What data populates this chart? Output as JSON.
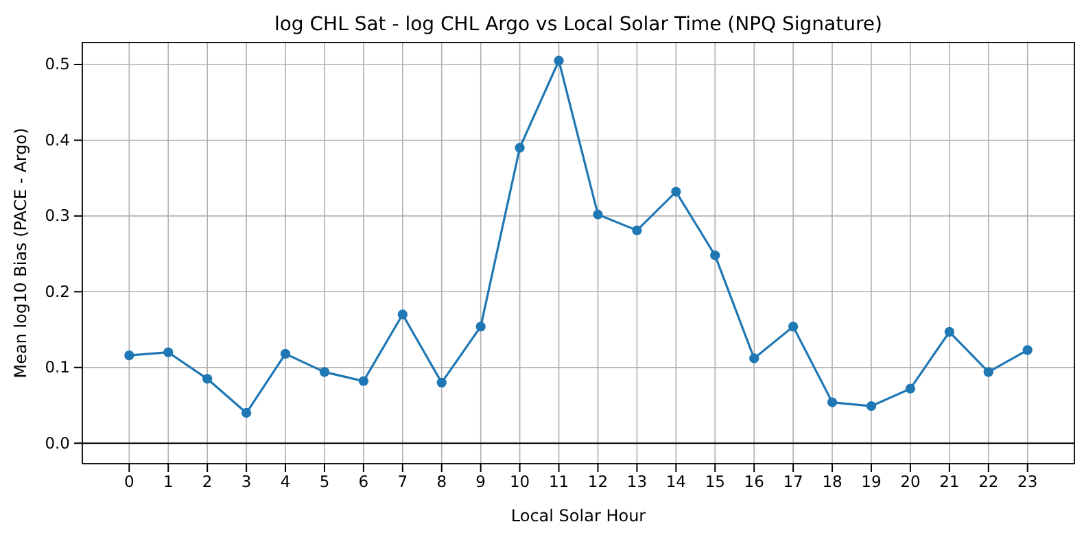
{
  "chart_data": {
    "type": "line",
    "title": "log CHL Sat - log CHL Argo vs Local Solar Time (NPQ Signature)",
    "xlabel": "Local Solar Hour",
    "ylabel": "Mean log10 Bias (PACE - Argo)",
    "x": [
      0,
      1,
      2,
      3,
      4,
      5,
      6,
      7,
      8,
      9,
      10,
      11,
      12,
      13,
      14,
      15,
      16,
      17,
      18,
      19,
      20,
      21,
      22,
      23
    ],
    "series": [
      {
        "color": "#1f77b4",
        "values": [
          0.116,
          0.12,
          0.085,
          0.04,
          0.118,
          0.094,
          0.082,
          0.17,
          0.08,
          0.154,
          0.39,
          0.505,
          0.302,
          0.281,
          0.332,
          0.248,
          0.112,
          0.154,
          0.054,
          0.049,
          0.072,
          0.147,
          0.094,
          0.123
        ]
      }
    ],
    "xlim": [
      -1.2,
      24.2
    ],
    "ylim": [
      -0.027,
      0.529
    ],
    "xticks": [
      0,
      1,
      2,
      3,
      4,
      5,
      6,
      7,
      8,
      9,
      10,
      11,
      12,
      13,
      14,
      15,
      16,
      17,
      18,
      19,
      20,
      21,
      22,
      23
    ],
    "yticks": [
      {
        "value": 0,
        "label": "0.0"
      },
      0.1,
      0.2,
      0.3,
      0.4,
      0.5
    ],
    "ref_lines": [
      {
        "axis": "y",
        "value": 0,
        "color": "#000000"
      }
    ],
    "grid": true,
    "marker": "circle",
    "line_style": "solid"
  }
}
